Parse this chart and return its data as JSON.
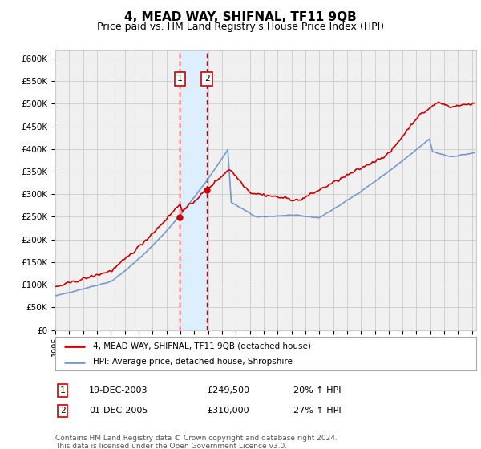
{
  "title": "4, MEAD WAY, SHIFNAL, TF11 9QB",
  "subtitle": "Price paid vs. HM Land Registry's House Price Index (HPI)",
  "footer": "Contains HM Land Registry data © Crown copyright and database right 2024.\nThis data is licensed under the Open Government Licence v3.0.",
  "legend_line1": "4, MEAD WAY, SHIFNAL, TF11 9QB (detached house)",
  "legend_line2": "HPI: Average price, detached house, Shropshire",
  "sale1_date": "19-DEC-2003",
  "sale1_price": "£249,500",
  "sale1_hpi": "20% ↑ HPI",
  "sale2_date": "01-DEC-2005",
  "sale2_price": "£310,000",
  "sale2_hpi": "27% ↑ HPI",
  "sale1_x": 2003.96,
  "sale2_x": 2005.92,
  "sale1_y": 249500,
  "sale2_y": 310000,
  "red_color": "#cc0000",
  "blue_color": "#7799cc",
  "shade_color": "#ddeeff",
  "grid_color": "#cccccc",
  "bg_color": "#f0f0f0",
  "ylim": [
    0,
    620000
  ],
  "xlim_start": 1995.0,
  "xlim_end": 2025.3,
  "title_fontsize": 11,
  "subtitle_fontsize": 9
}
